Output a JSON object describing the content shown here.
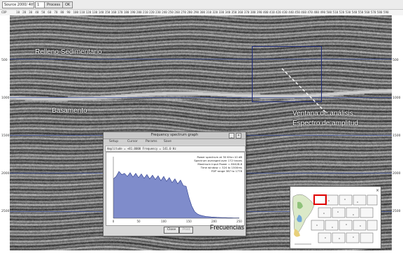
{
  "toolbar": {
    "field_label": "Source 2000/ 4th",
    "zoom_value": "1",
    "button_label": "Process",
    "ok_label": "OK"
  },
  "top_ruler": {
    "ticks": [
      "CDP",
      "10",
      "20",
      "30",
      "40",
      "50",
      "60",
      "70",
      "80",
      "90",
      "100",
      "110",
      "120",
      "130",
      "140",
      "150",
      "160",
      "170",
      "180",
      "190",
      "200",
      "210",
      "220",
      "230",
      "240",
      "250",
      "260",
      "270",
      "280",
      "290",
      "300",
      "310",
      "320",
      "330",
      "340",
      "350",
      "360",
      "370",
      "380",
      "390",
      "400",
      "410",
      "420",
      "430",
      "440",
      "450",
      "460",
      "470",
      "480",
      "490",
      "500",
      "510",
      "520",
      "530",
      "540",
      "550",
      "560",
      "570",
      "580",
      "590"
    ]
  },
  "time_axis": {
    "left": [
      "500",
      "1000",
      "1500",
      "2000",
      "2500"
    ],
    "right": [
      "500",
      "1000",
      "1500",
      "2000",
      "2500"
    ]
  },
  "annotations": {
    "relleno": "Relleno Sedimentario",
    "basamento": "Basamento",
    "ventana_line1": "Ventana de análisis",
    "ventana_line2": "Espectro de amplitud",
    "frecuencias": "Frecuencias"
  },
  "spectrum_dialog": {
    "title": "Frequency spectrum graph",
    "menu": [
      "Setup",
      "Cursor",
      "Params",
      "Save"
    ],
    "info_line": "Amplitude = +81.0000     Frequency = 141.0 Hz",
    "stats": [
      "Power spectrum at 30 KHz=10 dB",
      "Spectrum averaged over 172 traces",
      "Maximum input Power = 80428.8",
      "Time window = 324 to 1500ms",
      "FDP range 387 to 1778"
    ],
    "x_ticks": [
      "0",
      "50",
      "100",
      "150",
      "200",
      "250"
    ],
    "close_label": "Close",
    "print_label": "Print",
    "curve": [
      0.62,
      0.7,
      0.74,
      0.73,
      0.71,
      0.7,
      0.72,
      0.69,
      0.71,
      0.68,
      0.7,
      0.67,
      0.69,
      0.66,
      0.68,
      0.65,
      0.67,
      0.63,
      0.66,
      0.62,
      0.64,
      0.6,
      0.62,
      0.58,
      0.6,
      0.55,
      0.5,
      0.36,
      0.2,
      0.11,
      0.07,
      0.05,
      0.04,
      0.03,
      0.025,
      0.02,
      0.018,
      0.015,
      0.012,
      0.01,
      0.01,
      0.008,
      0.008,
      0.006,
      0.006,
      0.005
    ],
    "fill_color": "#7f8ccb",
    "line_color": "#2a3a8a"
  },
  "colors": {
    "window_box": "#1e2a78",
    "inset_highlight": "#e00000"
  }
}
